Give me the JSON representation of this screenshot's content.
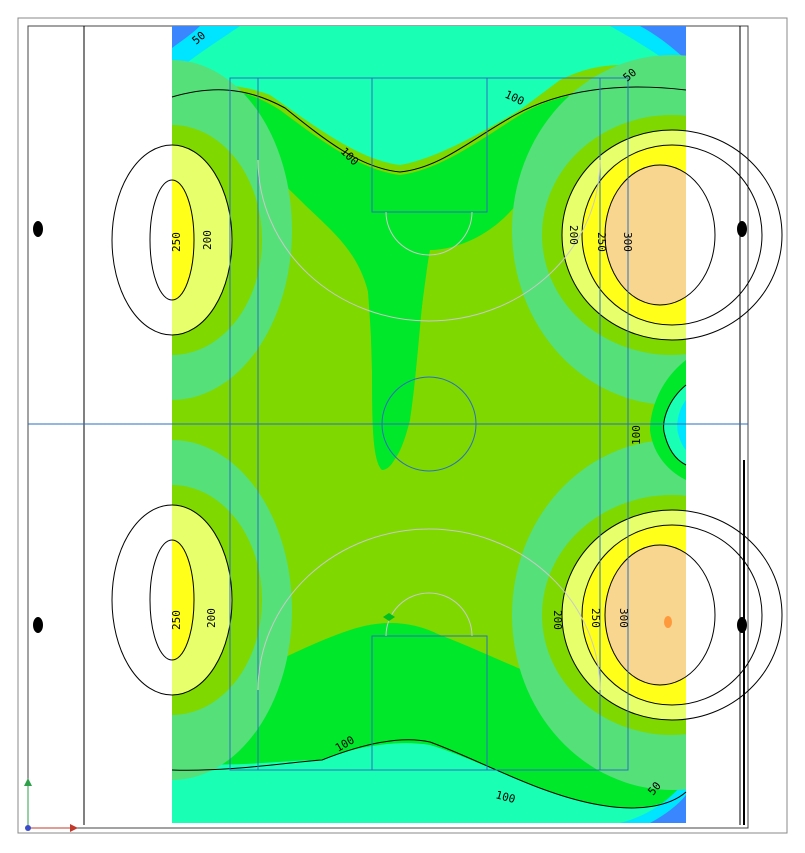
{
  "isolux_plan": {
    "contour_labels": {
      "c50_top_left": "50",
      "c50_top_right": "50",
      "c50_bottom_right": "50",
      "c100_top_right": "100",
      "c100_top_mid": "100",
      "c100_right_mid": "100",
      "c100_bottom_left": "100",
      "c100_bottom_mid": "100",
      "c200_top_left": "200",
      "c200_top_right": "200",
      "c200_bottom_left": "200",
      "c200_bottom_right": "200",
      "c250_top_left": "250",
      "c250_top_right": "250",
      "c250_bottom_left": "250",
      "c250_bottom_right": "250",
      "c300_top_right": "300",
      "c300_bottom_right": "300"
    },
    "colors": {
      "blue": "#3a86ff",
      "cyan": "#00e5ff",
      "teal": "#19ffb4",
      "light_green": "#55e07a",
      "green": "#00e82a",
      "yellow_green": "#7fd800",
      "pale_yellow": "#e6ff6a",
      "yellow": "#ffff1a",
      "peach": "#f8d690",
      "orange_spot": "#ff9a3c",
      "field_lines": "#2a6fbf",
      "contour": "#000000"
    }
  }
}
